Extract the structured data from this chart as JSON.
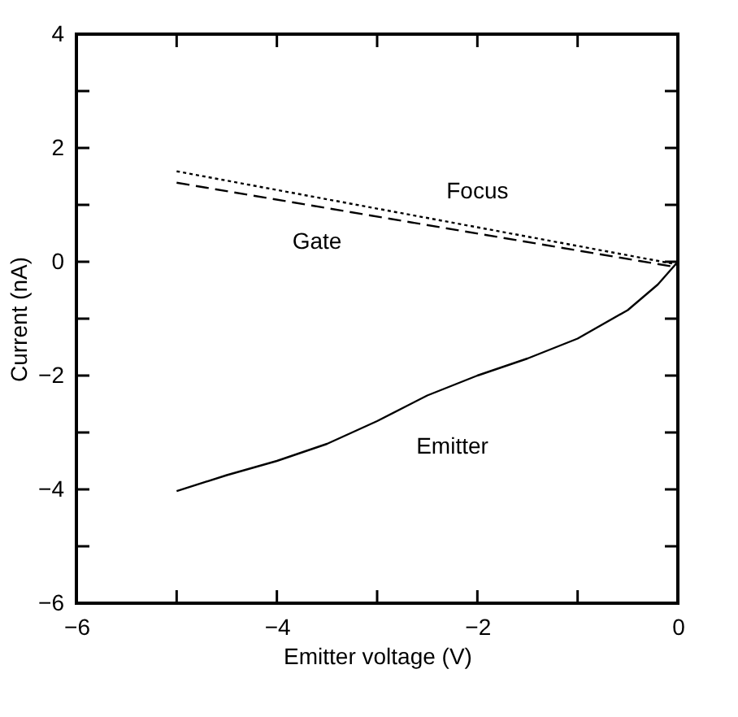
{
  "chart_data": {
    "type": "line",
    "xlabel": "Emitter voltage (V)",
    "ylabel": "Current (nA)",
    "xlim": [
      -6,
      0
    ],
    "ylim": [
      -6,
      4
    ],
    "xticks": [
      -6,
      {
        "value": -5,
        "label": null
      },
      -4,
      {
        "value": -3,
        "label": null
      },
      -2,
      {
        "value": -1,
        "label": null
      },
      0
    ],
    "yticks": [
      -6,
      {
        "value": -5,
        "label": null
      },
      -4,
      {
        "value": -3,
        "label": null
      },
      -2,
      {
        "value": -1,
        "label": null
      },
      0,
      {
        "value": 1,
        "label": null
      },
      2,
      {
        "value": 3,
        "label": null
      },
      4
    ],
    "grid": false,
    "series": [
      {
        "name": "Focus",
        "color": "#000000",
        "line_style": "dotted",
        "x": [
          -5,
          0
        ],
        "values": [
          1.59,
          -0.05
        ]
      },
      {
        "name": "Gate",
        "color": "#000000",
        "line_style": "dashed",
        "x": [
          -5,
          0
        ],
        "values": [
          1.39,
          -0.1
        ]
      },
      {
        "name": "Emitter",
        "color": "#000000",
        "line_style": "solid",
        "x": [
          -5,
          -4.5,
          -4,
          -3.5,
          -3,
          -2.5,
          -2,
          -1.5,
          -1,
          -0.5,
          -0.2,
          0
        ],
        "values": [
          -4.03,
          -3.75,
          -3.5,
          -3.2,
          -2.8,
          -2.35,
          -2.0,
          -1.7,
          -1.35,
          -0.85,
          -0.4,
          0
        ]
      }
    ]
  }
}
